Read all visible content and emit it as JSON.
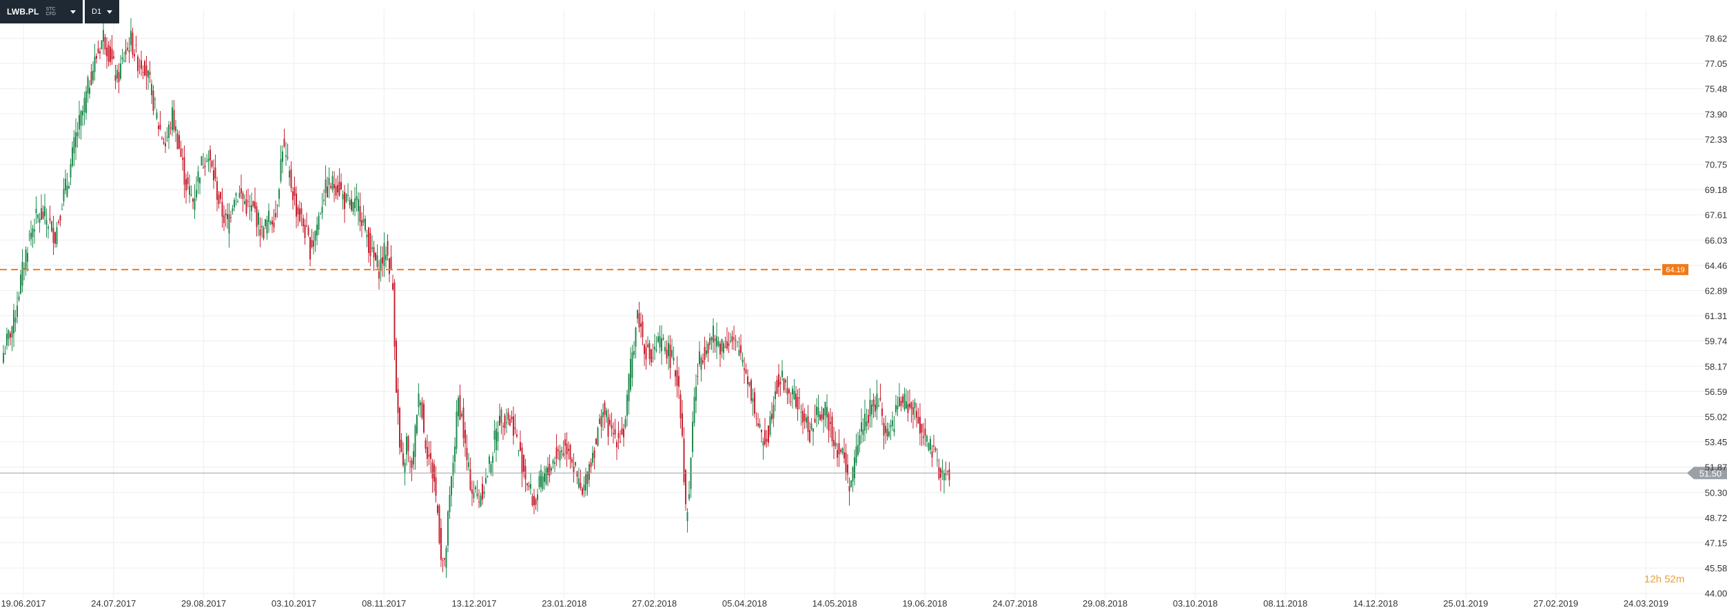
{
  "toolbar": {
    "symbol": "LWB.PL",
    "symbol_sub": "STC CFD",
    "interval": "D1"
  },
  "countdown": {
    "hours": "12",
    "hours_unit": "h",
    "minutes": "52",
    "minutes_unit": "m"
  },
  "colors": {
    "up": "#1e8a4c",
    "down": "#c8202f",
    "grid": "#eeeeee",
    "level_line": "#f07a1a",
    "price_line": "#9aa0a6",
    "price_tag": "#9aa0a6"
  },
  "chart_data": {
    "type": "candlestick",
    "y_range": [
      44.5,
      80.0
    ],
    "y_ticks": [
      "78.62",
      "77.05",
      "75.48",
      "73.90",
      "72.33",
      "70.75",
      "69.18",
      "67.61",
      "66.03",
      "64.46",
      "62.89",
      "61.31",
      "59.74",
      "58.17",
      "56.59",
      "55.02",
      "53.45",
      "51.87",
      "50.30",
      "48.72",
      "47.15",
      "45.58",
      "44.00"
    ],
    "x_ticks": [
      "19.06.2017",
      "24.07.2017",
      "29.08.2017",
      "03.10.2017",
      "08.11.2017",
      "13.12.2017",
      "23.01.2018",
      "27.02.2018",
      "05.04.2018",
      "14.05.2018",
      "19.06.2018",
      "24.07.2018",
      "29.08.2018",
      "03.10.2018",
      "08.11.2018",
      "14.12.2018",
      "25.01.2019",
      "27.02.2019",
      "24.03.2019"
    ],
    "level_line": {
      "value": 64.19,
      "label": "64.19"
    },
    "last_price": {
      "value": 51.5,
      "label": "51.50"
    },
    "close_path": [
      [
        0,
        59.0
      ],
      [
        6,
        61.0
      ],
      [
        10,
        63.5
      ],
      [
        14,
        65.8
      ],
      [
        18,
        67.2
      ],
      [
        22,
        67.7
      ],
      [
        26,
        67.2
      ],
      [
        30,
        66.3
      ],
      [
        34,
        68.5
      ],
      [
        38,
        70.0
      ],
      [
        42,
        72.5
      ],
      [
        46,
        74.0
      ],
      [
        50,
        76.0
      ],
      [
        54,
        77.5
      ],
      [
        58,
        78.8
      ],
      [
        62,
        77.5
      ],
      [
        66,
        76.0
      ],
      [
        70,
        77.5
      ],
      [
        74,
        78.5
      ],
      [
        78,
        77.2
      ],
      [
        82,
        77.0
      ],
      [
        86,
        75.2
      ],
      [
        90,
        73.2
      ],
      [
        94,
        72.0
      ],
      [
        98,
        73.8
      ],
      [
        102,
        71.8
      ],
      [
        106,
        69.5
      ],
      [
        110,
        68.5
      ],
      [
        114,
        70.5
      ],
      [
        118,
        71.5
      ],
      [
        122,
        70.0
      ],
      [
        126,
        68.0
      ],
      [
        130,
        67.0
      ],
      [
        134,
        69.0
      ],
      [
        138,
        68.8
      ],
      [
        142,
        68.0
      ],
      [
        146,
        67.8
      ],
      [
        150,
        66.5
      ],
      [
        154,
        67.3
      ],
      [
        158,
        67.6
      ],
      [
        162,
        72.0
      ],
      [
        166,
        70.0
      ],
      [
        170,
        68.0
      ],
      [
        174,
        67.0
      ],
      [
        178,
        65.5
      ],
      [
        182,
        67.0
      ],
      [
        186,
        69.0
      ],
      [
        190,
        69.5
      ],
      [
        194,
        69.5
      ],
      [
        198,
        68.5
      ],
      [
        202,
        68.0
      ],
      [
        206,
        68.2
      ],
      [
        210,
        66.8
      ],
      [
        214,
        65.0
      ],
      [
        218,
        64.3
      ],
      [
        222,
        65.5
      ],
      [
        224,
        64.5
      ],
      [
        226,
        63.0
      ],
      [
        228,
        57.0
      ],
      [
        230,
        53.0
      ],
      [
        232,
        51.5
      ],
      [
        234,
        53.5
      ],
      [
        236,
        51.8
      ],
      [
        238,
        52.5
      ],
      [
        240,
        55.5
      ],
      [
        242,
        56.5
      ],
      [
        244,
        54.0
      ],
      [
        246,
        53.0
      ],
      [
        248,
        52.0
      ],
      [
        250,
        51.0
      ],
      [
        252,
        49.0
      ],
      [
        254,
        46.5
      ],
      [
        256,
        45.5
      ],
      [
        258,
        48.5
      ],
      [
        260,
        51.0
      ],
      [
        262,
        53.5
      ],
      [
        264,
        56.0
      ],
      [
        266,
        55.0
      ],
      [
        268,
        53.0
      ],
      [
        270,
        51.5
      ],
      [
        272,
        50.5
      ],
      [
        276,
        50.0
      ],
      [
        280,
        51.0
      ],
      [
        284,
        53.0
      ],
      [
        288,
        55.0
      ],
      [
        292,
        55.0
      ],
      [
        296,
        54.5
      ],
      [
        300,
        52.5
      ],
      [
        304,
        51.0
      ],
      [
        308,
        49.5
      ],
      [
        312,
        51.0
      ],
      [
        316,
        51.5
      ],
      [
        320,
        52.5
      ],
      [
        324,
        53.0
      ],
      [
        328,
        53.2
      ],
      [
        332,
        51.5
      ],
      [
        336,
        50.0
      ],
      [
        340,
        52.0
      ],
      [
        344,
        53.5
      ],
      [
        348,
        55.5
      ],
      [
        352,
        54.0
      ],
      [
        356,
        53.8
      ],
      [
        360,
        54.0
      ],
      [
        364,
        58.0
      ],
      [
        368,
        61.5
      ],
      [
        372,
        59.5
      ],
      [
        376,
        58.5
      ],
      [
        380,
        59.5
      ],
      [
        384,
        59.5
      ],
      [
        388,
        58.5
      ],
      [
        392,
        57.0
      ],
      [
        394,
        54.0
      ],
      [
        396,
        49.0
      ],
      [
        398,
        50.0
      ],
      [
        400,
        55.0
      ],
      [
        402,
        57.0
      ],
      [
        404,
        58.5
      ],
      [
        408,
        59.5
      ],
      [
        412,
        60.0
      ],
      [
        416,
        59.5
      ],
      [
        420,
        59.8
      ],
      [
        424,
        59.5
      ],
      [
        428,
        59.0
      ],
      [
        432,
        57.5
      ],
      [
        436,
        55.5
      ],
      [
        440,
        53.5
      ],
      [
        444,
        54.0
      ],
      [
        448,
        57.0
      ],
      [
        452,
        57.3
      ],
      [
        456,
        56.5
      ],
      [
        460,
        56.0
      ],
      [
        464,
        55.0
      ],
      [
        468,
        54.0
      ],
      [
        472,
        55.0
      ],
      [
        476,
        55.5
      ],
      [
        480,
        54.5
      ],
      [
        484,
        53.0
      ],
      [
        488,
        52.5
      ],
      [
        490,
        51.0
      ],
      [
        492,
        51.0
      ],
      [
        494,
        52.0
      ],
      [
        496,
        53.5
      ],
      [
        500,
        55.0
      ],
      [
        504,
        55.5
      ],
      [
        508,
        56.0
      ],
      [
        512,
        54.0
      ],
      [
        516,
        54.5
      ],
      [
        520,
        56.0
      ],
      [
        524,
        55.8
      ],
      [
        528,
        55.5
      ],
      [
        532,
        54.5
      ],
      [
        536,
        53.5
      ],
      [
        540,
        52.5
      ],
      [
        544,
        51.5
      ],
      [
        548,
        51.2
      ],
      [
        549,
        51.5
      ]
    ]
  }
}
